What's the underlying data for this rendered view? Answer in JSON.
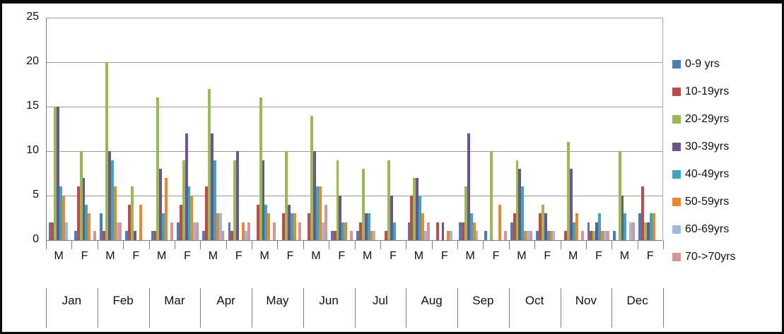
{
  "chart_data": {
    "type": "bar",
    "title": "",
    "xlabel": "",
    "ylabel": "",
    "ylim": [
      0,
      25
    ],
    "y_ticks": [
      0,
      5,
      10,
      15,
      20,
      25
    ],
    "grid": "horizontal",
    "legend_position": "right",
    "categories": [
      "Jan",
      "Feb",
      "Mar",
      "Apr",
      "May",
      "Jun",
      "Jul",
      "Aug",
      "Sep",
      "Oct",
      "Nov",
      "Dec"
    ],
    "subcategories": [
      "M",
      "F"
    ],
    "series": [
      {
        "name": "0-9 yrs",
        "color": "#4A7EBB",
        "M": [
          2,
          3,
          1,
          1,
          0,
          0,
          1,
          2,
          2,
          2,
          0,
          1
        ],
        "F": [
          1,
          1,
          2,
          2,
          0,
          1,
          0,
          0,
          1,
          1,
          2,
          3
        ]
      },
      {
        "name": "10-19yrs",
        "color": "#BE4B48",
        "M": [
          2,
          1,
          1,
          6,
          4,
          3,
          2,
          5,
          2,
          3,
          1,
          0
        ],
        "F": [
          6,
          4,
          4,
          1,
          3,
          1,
          1,
          2,
          0,
          3,
          1,
          6
        ]
      },
      {
        "name": "20-29yrs",
        "color": "#98B954",
        "M": [
          15,
          20,
          16,
          17,
          16,
          14,
          8,
          7,
          6,
          9,
          11,
          10
        ],
        "F": [
          10,
          6,
          9,
          9,
          10,
          9,
          9,
          0,
          10,
          4,
          1,
          2
        ]
      },
      {
        "name": "30-39yrs",
        "color": "#6C548E",
        "M": [
          15,
          10,
          8,
          12,
          9,
          10,
          3,
          7,
          12,
          8,
          8,
          5
        ],
        "F": [
          7,
          1,
          12,
          10,
          4,
          5,
          5,
          2,
          0,
          3,
          2,
          2
        ]
      },
      {
        "name": "40-49yrs",
        "color": "#3BA6BD",
        "M": [
          6,
          9,
          3,
          9,
          4,
          6,
          3,
          5,
          3,
          6,
          2,
          3
        ],
        "F": [
          4,
          0,
          6,
          0,
          3,
          2,
          2,
          0,
          0,
          1,
          3,
          3
        ]
      },
      {
        "name": "50-59yrs",
        "color": "#E8892E",
        "M": [
          5,
          6,
          7,
          3,
          3,
          6,
          1,
          3,
          2,
          1,
          3,
          0
        ],
        "F": [
          3,
          4,
          5,
          2,
          3,
          2,
          0,
          1,
          4,
          1,
          1,
          3
        ]
      },
      {
        "name": "60-69yrs",
        "color": "#9FB9DC",
        "M": [
          2,
          2,
          0,
          3,
          0,
          2,
          1,
          1,
          1,
          1,
          0,
          2
        ],
        "F": [
          0,
          0,
          2,
          1,
          0,
          0,
          0,
          1,
          0,
          1,
          1,
          0
        ]
      },
      {
        "name": "70->70yrs",
        "color": "#D89594",
        "M": [
          0,
          2,
          2,
          1,
          2,
          4,
          0,
          2,
          0,
          1,
          1,
          2
        ],
        "F": [
          1,
          0,
          2,
          2,
          2,
          1,
          0,
          0,
          1,
          0,
          1,
          0
        ]
      }
    ]
  }
}
